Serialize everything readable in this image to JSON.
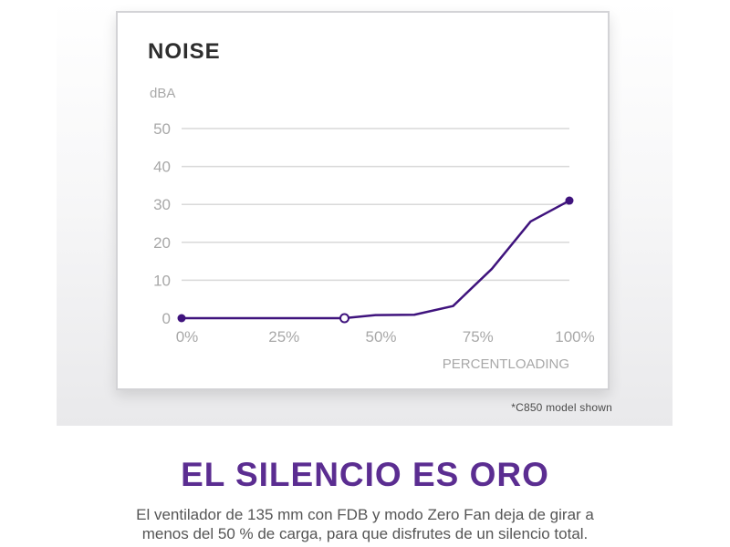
{
  "chart_data": {
    "type": "line",
    "title": "NOISE",
    "ylabel": "dBA",
    "xlabel": "PERCENTLOADING",
    "ylim": [
      0,
      50
    ],
    "yticks": [
      "0",
      "10",
      "20",
      "30",
      "40",
      "50"
    ],
    "xticks": [
      "0%",
      "25%",
      "50%",
      "75%",
      "100%"
    ],
    "grid": true,
    "x": [
      0,
      42,
      50,
      60,
      70,
      80,
      90,
      100
    ],
    "y": [
      0,
      0,
      0.8,
      0.9,
      3.2,
      13,
      25.5,
      31
    ],
    "open_marker_x": [
      42
    ],
    "line_color": "#3f137d"
  },
  "footnote": "*C850 model shown",
  "headline": "EL SILENCIO ES ORO",
  "body": {
    "line1": "El ventilador de 135 mm con FDB y modo Zero Fan deja de girar a",
    "line2": "menos del 50 % de carga, para que disfrutes de un silencio total."
  },
  "colors": {
    "headline": "#5b2d91",
    "grid": "#d9d9d9",
    "tick_text": "#a8a8a8",
    "title": "#2e2e2e"
  }
}
